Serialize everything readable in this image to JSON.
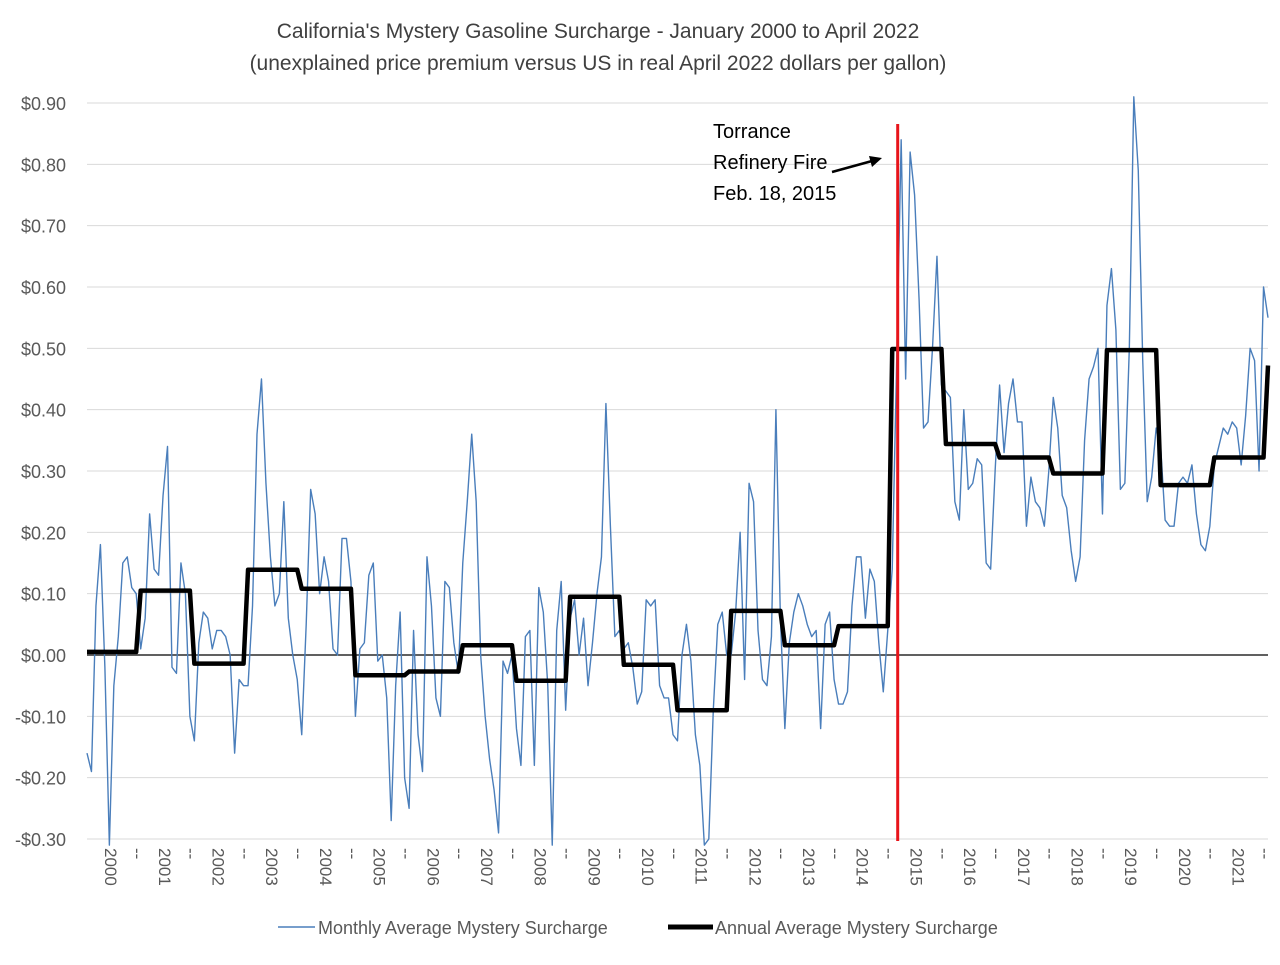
{
  "chart_data": {
    "type": "line",
    "title": "California's Mystery Gasoline Surcharge - January 2000 to April 2022",
    "subtitle": "(unexplained price premium versus US in real April 2022 dollars per gallon)",
    "xlabel": "",
    "ylabel": "",
    "ylim": [
      -0.3,
      0.9
    ],
    "ytick_values": [
      -0.3,
      -0.2,
      -0.1,
      0.0,
      0.1,
      0.2,
      0.3,
      0.4,
      0.5,
      0.6,
      0.7,
      0.8,
      0.9
    ],
    "ytick_labels": [
      "-$0.30",
      "-$0.20",
      "-$0.10",
      "$0.00",
      "$0.10",
      "$0.20",
      "$0.30",
      "$0.40",
      "$0.50",
      "$0.60",
      "$0.70",
      "$0.80",
      "$0.90"
    ],
    "xtick_labels": [
      "2000",
      "--",
      "2001",
      "--",
      "2002",
      "--",
      "2003",
      "--",
      "2004",
      "--",
      "2005",
      "--",
      "2006",
      "--",
      "2007",
      "--",
      "2008",
      "--",
      "2009",
      "--",
      "2010",
      "--",
      "2011",
      "--",
      "2012",
      "--",
      "2013",
      "--",
      "2014",
      "--",
      "2015",
      "--",
      "2016",
      "--",
      "2017",
      "--",
      "2018",
      "--",
      "2019",
      "--",
      "2020",
      "--",
      "2021",
      "--"
    ],
    "grid": true,
    "legend_position": "bottom",
    "series": [
      {
        "name": "Monthly Average Mystery Surcharge",
        "color": "#4a7ebb",
        "start": "2000-01",
        "values": [
          -0.16,
          -0.19,
          0.08,
          0.18,
          -0.02,
          -0.31,
          -0.05,
          0.03,
          0.15,
          0.16,
          0.11,
          0.1,
          0.01,
          0.06,
          0.23,
          0.14,
          0.13,
          0.26,
          0.34,
          -0.02,
          -0.03,
          0.15,
          0.1,
          -0.1,
          -0.14,
          0.02,
          0.07,
          0.06,
          0.01,
          0.04,
          0.04,
          0.03,
          0.0,
          -0.16,
          -0.04,
          -0.05,
          -0.05,
          0.08,
          0.36,
          0.45,
          0.28,
          0.16,
          0.08,
          0.1,
          0.25,
          0.06,
          0.0,
          -0.04,
          -0.13,
          0.05,
          0.27,
          0.23,
          0.1,
          0.16,
          0.12,
          0.01,
          0.0,
          0.19,
          0.19,
          0.12,
          -0.1,
          0.01,
          0.02,
          0.13,
          0.15,
          -0.01,
          0.0,
          -0.07,
          -0.27,
          -0.05,
          0.07,
          -0.2,
          -0.25,
          0.04,
          -0.13,
          -0.19,
          0.16,
          0.08,
          -0.07,
          -0.1,
          0.12,
          0.11,
          0.02,
          -0.03,
          0.15,
          0.25,
          0.36,
          0.25,
          0.0,
          -0.1,
          -0.17,
          -0.22,
          -0.29,
          -0.01,
          -0.03,
          0.0,
          -0.12,
          -0.18,
          0.03,
          0.04,
          -0.18,
          0.11,
          0.07,
          -0.05,
          -0.31,
          0.04,
          0.12,
          -0.09,
          0.06,
          0.09,
          0.0,
          0.06,
          -0.05,
          0.02,
          0.1,
          0.16,
          0.41,
          0.21,
          0.03,
          0.04,
          0.01,
          0.02,
          -0.02,
          -0.08,
          -0.06,
          0.09,
          0.08,
          0.09,
          -0.05,
          -0.07,
          -0.07,
          -0.13,
          -0.14,
          0.0,
          0.05,
          -0.01,
          -0.13,
          -0.18,
          -0.31,
          -0.3,
          -0.09,
          0.05,
          0.07,
          0.0,
          0.0,
          0.07,
          0.2,
          -0.04,
          0.28,
          0.25,
          0.04,
          -0.04,
          -0.05,
          0.03,
          0.4,
          0.06,
          -0.12,
          0.02,
          0.07,
          0.1,
          0.08,
          0.05,
          0.03,
          0.04,
          -0.12,
          0.05,
          0.07,
          -0.04,
          -0.08,
          -0.08,
          -0.06,
          0.08,
          0.16,
          0.16,
          0.06,
          0.14,
          0.12,
          0.02,
          -0.06,
          0.04,
          0.14,
          0.48,
          0.84,
          0.45,
          0.82,
          0.75,
          0.58,
          0.37,
          0.38,
          0.5,
          0.65,
          0.44,
          0.43,
          0.42,
          0.25,
          0.22,
          0.4,
          0.27,
          0.28,
          0.32,
          0.31,
          0.15,
          0.14,
          0.3,
          0.44,
          0.33,
          0.41,
          0.45,
          0.38,
          0.38,
          0.21,
          0.29,
          0.25,
          0.24,
          0.21,
          0.3,
          0.42,
          0.37,
          0.26,
          0.24,
          0.17,
          0.12,
          0.16,
          0.35,
          0.45,
          0.47,
          0.5,
          0.23,
          0.57,
          0.63,
          0.53,
          0.27,
          0.28,
          0.5,
          0.91,
          0.79,
          0.48,
          0.25,
          0.29,
          0.37,
          0.34,
          0.22,
          0.21,
          0.21,
          0.28,
          0.29,
          0.28,
          0.31,
          0.23,
          0.18,
          0.17,
          0.21,
          0.31,
          0.34,
          0.37,
          0.36,
          0.38,
          0.37,
          0.31,
          0.39,
          0.5,
          0.48,
          0.3,
          0.6,
          0.55
        ]
      },
      {
        "name": "Annual Average Mystery Surcharge",
        "color": "#000000",
        "annual": [
          {
            "year": 2000,
            "value": 0.005
          },
          {
            "year": 2001,
            "value": 0.105
          },
          {
            "year": 2002,
            "value": -0.014
          },
          {
            "year": 2003,
            "value": 0.139
          },
          {
            "year": 2004,
            "value": 0.108
          },
          {
            "year": 2005,
            "value": -0.033
          },
          {
            "year": 2006,
            "value": -0.027
          },
          {
            "year": 2007,
            "value": 0.016
          },
          {
            "year": 2008,
            "value": -0.042
          },
          {
            "year": 2009,
            "value": 0.095
          },
          {
            "year": 2010,
            "value": -0.016
          },
          {
            "year": 2011,
            "value": -0.09
          },
          {
            "year": 2012,
            "value": 0.072
          },
          {
            "year": 2013,
            "value": 0.016
          },
          {
            "year": 2014,
            "value": 0.047
          },
          {
            "year": 2015,
            "value": 0.499
          },
          {
            "year": 2016,
            "value": 0.344
          },
          {
            "year": 2017,
            "value": 0.322
          },
          {
            "year": 2018,
            "value": 0.296
          },
          {
            "year": 2019,
            "value": 0.497
          },
          {
            "year": 2020,
            "value": 0.277
          },
          {
            "year": 2021,
            "value": 0.322
          },
          {
            "year": 2022,
            "value": 0.472
          }
        ]
      }
    ],
    "event_marker": {
      "date": "2015-02",
      "color": "#e8141a",
      "label_lines": [
        "Torrance",
        "Refinery Fire",
        "Feb. 18, 2015"
      ]
    }
  }
}
